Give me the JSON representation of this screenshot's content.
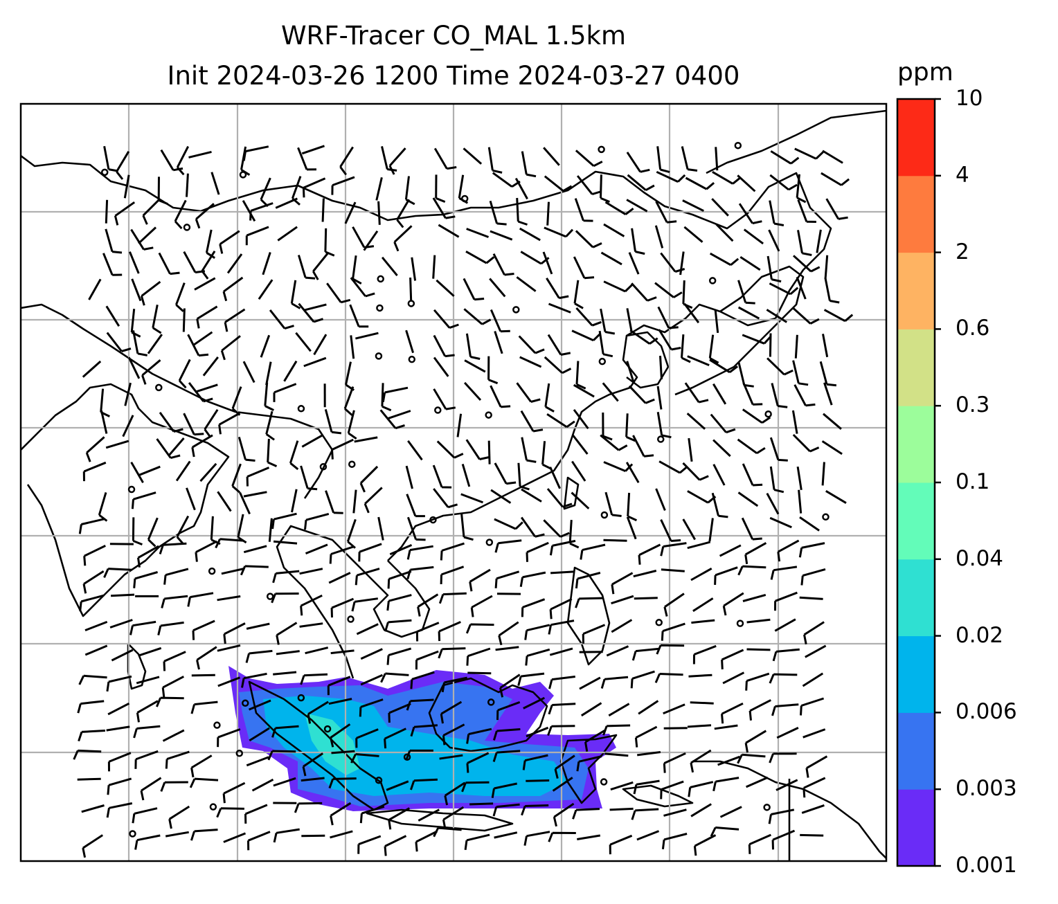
{
  "title": {
    "line1": "WRF-Tracer CO_MAL 1.5km",
    "line2": "Init 2024-03-26 1200 Time 2024-03-27 0400"
  },
  "colorbar": {
    "unit": "ppm",
    "labels": [
      "0.001",
      "0.003",
      "0.006",
      "0.02",
      "0.04",
      "0.1",
      "0.3",
      "0.6",
      "2",
      "4",
      "10"
    ],
    "colors": [
      "#6a2cf7",
      "#3774f1",
      "#00b4ec",
      "#2fe0d2",
      "#63fcb9",
      "#9cfd9b",
      "#d2e187",
      "#feb362",
      "#fe7b3e",
      "#fd2a17"
    ]
  },
  "map": {
    "gridlines": true,
    "grid_color": "#b0b0b0"
  }
}
